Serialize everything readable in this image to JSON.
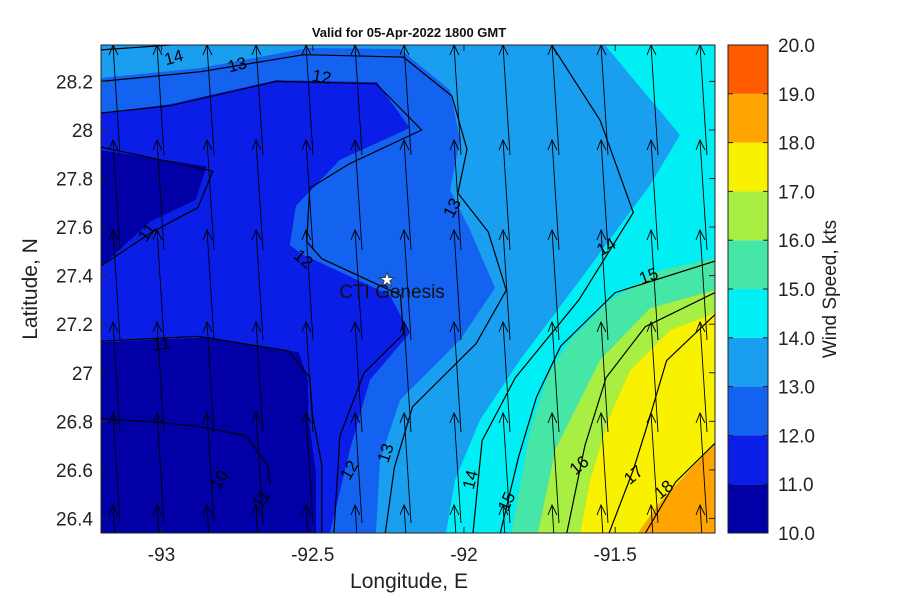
{
  "chart_data": {
    "type": "contour",
    "title": "Valid for 05-Apr-2022 1800 GMT",
    "xlabel": "Longitude, E",
    "ylabel": "Latitude, N",
    "xlim": [
      -93.2,
      -91.17
    ],
    "ylim": [
      26.34,
      28.35
    ],
    "x_ticks": [
      {
        "value": -93,
        "label": "-93"
      },
      {
        "value": -92.5,
        "label": "-92.5"
      },
      {
        "value": -92,
        "label": "-92"
      },
      {
        "value": -91.5,
        "label": "-91.5"
      }
    ],
    "y_ticks": [
      {
        "value": 28.2,
        "label": "28.2"
      },
      {
        "value": 28,
        "label": "28"
      },
      {
        "value": 27.8,
        "label": "27.8"
      },
      {
        "value": 27.6,
        "label": "27.6"
      },
      {
        "value": 27.4,
        "label": "27.4"
      },
      {
        "value": 27.2,
        "label": "27.2"
      },
      {
        "value": 27,
        "label": "27"
      },
      {
        "value": 26.8,
        "label": "26.8"
      },
      {
        "value": 26.6,
        "label": "26.6"
      },
      {
        "value": 26.4,
        "label": "26.4"
      }
    ],
    "colorbar": {
      "label": "Wind Speed, kts",
      "range": [
        10,
        20
      ],
      "levels": [
        10,
        11,
        12,
        13,
        14,
        15,
        16,
        17,
        18,
        19,
        20
      ],
      "tick_labels": [
        "10.0",
        "11.0",
        "12.0",
        "13.0",
        "14.0",
        "15.0",
        "16.0",
        "17.0",
        "18.0",
        "19.0",
        "20.0"
      ],
      "colors": [
        "#0000a6",
        "#0a1ee8",
        "#1462f0",
        "#1a9ff0",
        "#00eff4",
        "#46e7a6",
        "#a8ef44",
        "#f8f200",
        "#ffa400",
        "#ff5c00"
      ]
    },
    "contour_lines": [
      {
        "level": 10,
        "points": [
          [
            -93.2,
            26.81
          ],
          [
            -93.05,
            26.8
          ],
          [
            -92.88,
            26.78
          ],
          [
            -92.72,
            26.74
          ],
          [
            -92.65,
            26.62
          ],
          [
            -92.64,
            26.54
          ]
        ]
      },
      {
        "level": 11,
        "points": [
          [
            -93.2,
            27.93
          ],
          [
            -92.83,
            27.83
          ],
          [
            -92.88,
            27.68
          ],
          [
            -93.03,
            27.58
          ],
          [
            -93.2,
            27.44
          ]
        ]
      },
      {
        "level": 11,
        "points": [
          [
            -93.2,
            27.13
          ],
          [
            -92.88,
            27.15
          ],
          [
            -92.58,
            27.09
          ],
          [
            -92.51,
            26.98
          ],
          [
            -92.5,
            26.82
          ],
          [
            -92.47,
            26.62
          ],
          [
            -92.47,
            26.34
          ]
        ]
      },
      {
        "level": 12,
        "points": [
          [
            -93.2,
            28.07
          ],
          [
            -92.97,
            28.1
          ],
          [
            -92.62,
            28.2
          ],
          [
            -92.29,
            28.19
          ],
          [
            -92.14,
            28.0
          ],
          [
            -92.38,
            27.86
          ],
          [
            -92.51,
            27.76
          ],
          [
            -92.52,
            27.54
          ],
          [
            -92.47,
            27.47
          ],
          [
            -92.21,
            27.32
          ],
          [
            -92.2,
            27.16
          ],
          [
            -92.33,
            27.0
          ],
          [
            -92.41,
            26.74
          ],
          [
            -92.43,
            26.34
          ]
        ]
      },
      {
        "level": 13,
        "points": [
          [
            -93.2,
            28.2
          ],
          [
            -92.87,
            28.24
          ],
          [
            -92.53,
            28.31
          ],
          [
            -92.2,
            28.3
          ],
          [
            -92.04,
            28.14
          ],
          [
            -91.99,
            27.92
          ],
          [
            -92.02,
            27.74
          ],
          [
            -91.92,
            27.58
          ],
          [
            -91.86,
            27.34
          ],
          [
            -91.96,
            27.12
          ],
          [
            -92.17,
            26.86
          ],
          [
            -92.23,
            26.61
          ],
          [
            -92.26,
            26.34
          ]
        ]
      },
      {
        "level": 14,
        "points": [
          [
            -93.2,
            28.33
          ],
          [
            -92.97,
            28.35
          ]
        ]
      },
      {
        "level": 14,
        "points": [
          [
            -91.71,
            28.35
          ],
          [
            -91.55,
            28.04
          ],
          [
            -91.44,
            27.66
          ],
          [
            -91.62,
            27.3
          ],
          [
            -91.83,
            26.98
          ],
          [
            -91.94,
            26.72
          ],
          [
            -91.97,
            26.34
          ]
        ]
      },
      {
        "level": 15,
        "points": [
          [
            -91.17,
            27.46
          ],
          [
            -91.5,
            27.33
          ],
          [
            -91.68,
            27.11
          ],
          [
            -91.76,
            26.9
          ],
          [
            -91.82,
            26.65
          ],
          [
            -91.88,
            26.34
          ]
        ]
      },
      {
        "level": 16,
        "points": [
          [
            -91.17,
            27.33
          ],
          [
            -91.4,
            27.19
          ],
          [
            -91.53,
            26.98
          ],
          [
            -91.6,
            26.7
          ],
          [
            -91.66,
            26.34
          ]
        ]
      },
      {
        "level": 17,
        "points": [
          [
            -91.17,
            27.24
          ],
          [
            -91.33,
            27.05
          ],
          [
            -91.39,
            26.8
          ],
          [
            -91.44,
            26.6
          ],
          [
            -91.52,
            26.34
          ]
        ]
      },
      {
        "level": 18,
        "points": [
          [
            -91.17,
            26.71
          ],
          [
            -91.3,
            26.55
          ],
          [
            -91.4,
            26.34
          ]
        ]
      }
    ],
    "contour_labels": [
      {
        "text": "14",
        "x": -92.96,
        "y": 28.3,
        "angle": -15
      },
      {
        "text": "13",
        "x": -92.75,
        "y": 28.27,
        "angle": -15
      },
      {
        "text": "12",
        "x": -92.47,
        "y": 28.22,
        "angle": 10
      },
      {
        "text": "13",
        "x": -92.04,
        "y": 27.68,
        "angle": -62
      },
      {
        "text": "11",
        "x": -93.05,
        "y": 27.58,
        "angle": -55
      },
      {
        "text": "12",
        "x": -92.53,
        "y": 27.47,
        "angle": 40
      },
      {
        "text": "14",
        "x": -91.53,
        "y": 27.52,
        "angle": -30
      },
      {
        "text": "15",
        "x": -91.39,
        "y": 27.4,
        "angle": -20
      },
      {
        "text": "11",
        "x": -93.0,
        "y": 27.12,
        "angle": -8
      },
      {
        "text": "13",
        "x": -92.26,
        "y": 26.67,
        "angle": -72
      },
      {
        "text": "12",
        "x": -92.38,
        "y": 26.6,
        "angle": -60
      },
      {
        "text": "14",
        "x": -91.98,
        "y": 26.56,
        "angle": -75
      },
      {
        "text": "10",
        "x": -92.81,
        "y": 26.56,
        "angle": -60
      },
      {
        "text": "11",
        "x": -92.67,
        "y": 26.48,
        "angle": -55
      },
      {
        "text": "15",
        "x": -91.86,
        "y": 26.47,
        "angle": -65
      },
      {
        "text": "16",
        "x": -91.62,
        "y": 26.62,
        "angle": -40
      },
      {
        "text": "17",
        "x": -91.44,
        "y": 26.58,
        "angle": -40
      },
      {
        "text": "18",
        "x": -91.34,
        "y": 26.52,
        "angle": -40
      }
    ],
    "marker": {
      "label": "CTI Genesis",
      "x": -92.25,
      "y": 27.38
    },
    "wind_vectors": "uniform field of wind arrows pointing roughly north (slightly west) over the grid"
  }
}
